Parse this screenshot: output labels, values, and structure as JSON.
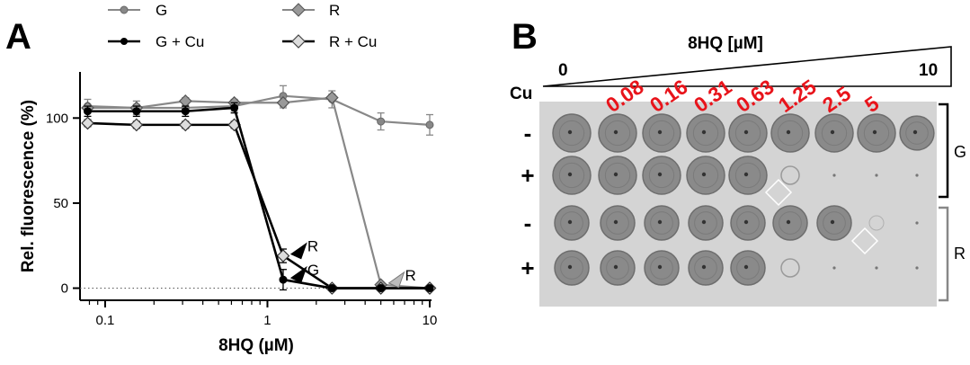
{
  "panel_a": {
    "letter": "A",
    "legend": [
      {
        "label": "G",
        "color": "#888888",
        "marker": "circle-filled",
        "series": 0
      },
      {
        "label": "R",
        "color": "#888888",
        "marker": "diamond-filled",
        "series": 2
      },
      {
        "label": "G + Cu",
        "color": "#000000",
        "marker": "circle-filled",
        "series": 1
      },
      {
        "label": "R + Cu",
        "color": "#000000",
        "marker": "diamond-open",
        "series": 3
      }
    ],
    "annotations": [
      {
        "label": "R",
        "arrow_color": "#000000",
        "at_x": 1.4,
        "at_y": 20
      },
      {
        "label": "G",
        "arrow_color": "#000000",
        "at_x": 1.4,
        "at_y": 6
      },
      {
        "label": "R",
        "arrow_color": "#bbbbbb",
        "at_x": 5.6,
        "at_y": 3
      }
    ]
  },
  "chart_data": {
    "type": "line",
    "xlabel": "8HQ (µM)",
    "ylabel": "Rel. fluorescence (%)",
    "x_scale": "log",
    "xlim": [
      0.07,
      10
    ],
    "ylim": [
      -5,
      125
    ],
    "x_ticks": [
      0.1,
      1,
      10
    ],
    "x_tick_labels": [
      "0.1",
      "1",
      "10"
    ],
    "y_ticks": [
      0,
      50,
      100
    ],
    "y_tick_labels": [
      "0",
      "50",
      "100"
    ],
    "reference_line": {
      "y": 0,
      "style": "dotted"
    },
    "x": [
      0.078,
      0.156,
      0.3125,
      0.625,
      1.25,
      2.5,
      5,
      10
    ],
    "series": [
      {
        "name": "G",
        "color": "#888888",
        "marker": "circle",
        "values": [
          107,
          106,
          106,
          107,
          113,
          111,
          98,
          96
        ],
        "errors": [
          4,
          4,
          3,
          3,
          6,
          5,
          5,
          6
        ]
      },
      {
        "name": "G + Cu",
        "color": "#000000",
        "marker": "circle",
        "values": [
          104,
          104,
          104,
          106,
          5,
          0,
          0,
          0
        ],
        "errors": [
          3,
          3,
          3,
          3,
          6,
          1,
          1,
          1
        ]
      },
      {
        "name": "R",
        "color": "#888888",
        "marker": "diamond",
        "values": [
          106,
          106,
          110,
          109,
          109,
          112,
          2,
          0
        ],
        "errors": [
          2,
          2,
          2,
          2,
          3,
          2,
          1,
          1
        ]
      },
      {
        "name": "R + Cu",
        "color": "#000000",
        "marker": "diamond-open",
        "values": [
          97,
          96,
          96,
          96,
          19,
          0,
          0,
          0
        ],
        "errors": [
          2,
          2,
          2,
          2,
          4,
          1,
          1,
          1
        ]
      }
    ]
  },
  "panel_b": {
    "letter": "B",
    "title": "8HQ [µM]",
    "start_label": "0",
    "end_label": "10",
    "cu_label": "Cu",
    "concentrations": [
      "0.08",
      "0.16",
      "0.31",
      "0.63",
      "1.25",
      "2.5",
      "5"
    ],
    "rows": [
      {
        "sign": "-",
        "spots": [
          1,
          1,
          1,
          1,
          1,
          1,
          1,
          1,
          0.9
        ]
      },
      {
        "sign": "+",
        "spots": [
          1,
          1,
          1,
          1,
          1,
          0.25,
          0,
          0,
          0
        ]
      },
      {
        "sign": "-",
        "spots": [
          1,
          1,
          1,
          1,
          1,
          1,
          1,
          0.1,
          0
        ]
      },
      {
        "sign": "+",
        "spots": [
          1,
          1,
          1,
          1,
          1,
          0.15,
          0,
          0,
          0
        ]
      }
    ],
    "groups": [
      {
        "label": "G",
        "bracket_color": "#000000"
      },
      {
        "label": "R",
        "bracket_color": "#888888"
      }
    ]
  }
}
